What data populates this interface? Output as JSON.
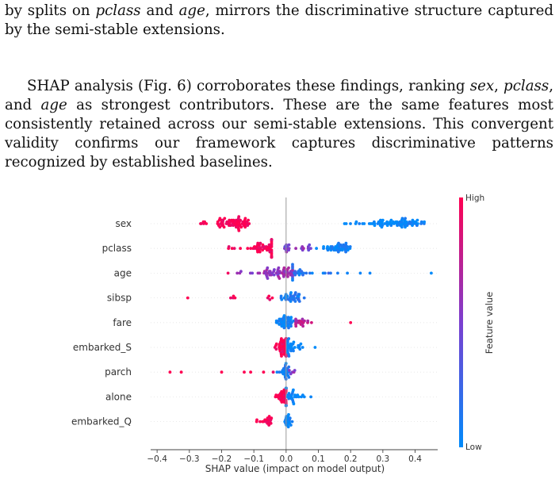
{
  "text": {
    "p1": [
      {
        "t": "by splits on "
      },
      {
        "t": "pclass",
        "i": true
      },
      {
        "t": " and "
      },
      {
        "t": "age",
        "i": true
      },
      {
        "t": ", mirrors the discriminative structure captured by the semi-stable extensions."
      }
    ],
    "p2": [
      {
        "t": "SHAP analysis (Fig. 6) corroborates these findings, ranking "
      },
      {
        "t": "sex",
        "i": true
      },
      {
        "t": ", "
      },
      {
        "t": "pclass",
        "i": true
      },
      {
        "t": ", and "
      },
      {
        "t": "age",
        "i": true
      },
      {
        "t": " as strongest contributors. These are the same features most consistently retained across our semi-stable extensions. This convergent validity confirms our framework captures discriminative patterns recognized by established baselines."
      }
    ]
  },
  "chart_data": {
    "type": "scatter",
    "subtype": "shap-beeswarm",
    "title": "",
    "xlabel": "SHAP value (impact on model output)",
    "xlim": [
      -0.42,
      0.47
    ],
    "xticks": [
      -0.4,
      -0.3,
      -0.2,
      -0.1,
      0.0,
      0.1,
      0.2,
      0.3,
      0.4
    ],
    "xtick_labels": [
      "−0.4",
      "−0.3",
      "−0.2",
      "−0.1",
      "0.0",
      "0.1",
      "0.2",
      "0.3",
      "0.4"
    ],
    "colorbar": {
      "label": "Feature value",
      "high": "High",
      "low": "Low",
      "high_color": "#ff0052",
      "low_color": "#008bfb"
    },
    "zero_line_color": "#999999",
    "grid": false,
    "features": [
      {
        "name": "sex",
        "groups": [
          {
            "min": -0.265,
            "max": -0.105,
            "peak": -0.165,
            "count": 70,
            "c": 1.0
          },
          {
            "min": 0.165,
            "max": 0.43,
            "peak": 0.335,
            "count": 75,
            "c": 0.0
          }
        ],
        "outliers": []
      },
      {
        "name": "pclass",
        "groups": [
          {
            "min": -0.185,
            "max": -0.045,
            "peak": -0.06,
            "count": 55,
            "c": 1.0
          },
          {
            "min": -0.005,
            "max": 0.015,
            "peak": 0.0,
            "count": 10,
            "c": 0.5
          },
          {
            "min": 0.03,
            "max": 0.09,
            "peak": 0.06,
            "count": 10,
            "c": 0.55
          },
          {
            "min": 0.09,
            "max": 0.215,
            "peak": 0.16,
            "count": 40,
            "c": 0.05
          }
        ],
        "outliers": []
      },
      {
        "name": "age",
        "groups": [
          {
            "min": -0.16,
            "max": 0.02,
            "peak": -0.02,
            "count": 60,
            "c": 0.6
          },
          {
            "min": 0.02,
            "max": 0.14,
            "peak": 0.03,
            "count": 25,
            "c": 0.15
          }
        ],
        "outliers": [
          {
            "x": -0.18,
            "c": 0.95
          },
          {
            "x": 0.16,
            "c": 0.1
          },
          {
            "x": 0.19,
            "c": 0.05
          },
          {
            "x": 0.23,
            "c": 0.05
          },
          {
            "x": 0.26,
            "c": 0.05
          },
          {
            "x": 0.45,
            "c": 0.0
          }
        ]
      },
      {
        "name": "sibsp",
        "groups": [
          {
            "min": -0.185,
            "max": -0.155,
            "peak": -0.17,
            "count": 4,
            "c": 1.0
          },
          {
            "min": -0.06,
            "max": -0.035,
            "peak": -0.05,
            "count": 4,
            "c": 1.0
          },
          {
            "min": -0.02,
            "max": 0.06,
            "peak": 0.02,
            "count": 35,
            "c": 0.1
          }
        ],
        "outliers": [
          {
            "x": -0.305,
            "c": 1.0
          }
        ]
      },
      {
        "name": "fare",
        "groups": [
          {
            "min": -0.03,
            "max": 0.03,
            "peak": 0.0,
            "count": 40,
            "c": 0.05
          },
          {
            "min": 0.03,
            "max": 0.085,
            "peak": 0.04,
            "count": 20,
            "c": 0.75
          }
        ],
        "outliers": [
          {
            "x": 0.2,
            "c": 1.0
          }
        ]
      },
      {
        "name": "embarked_S",
        "groups": [
          {
            "min": -0.035,
            "max": 0.005,
            "peak": -0.01,
            "count": 40,
            "c": 1.0
          },
          {
            "min": 0.005,
            "max": 0.06,
            "peak": 0.01,
            "count": 30,
            "c": 0.0
          }
        ],
        "outliers": [
          {
            "x": 0.09,
            "c": 0.0
          }
        ]
      },
      {
        "name": "parch",
        "groups": [
          {
            "min": -0.03,
            "max": 0.01,
            "peak": 0.0,
            "count": 25,
            "c": 0.05
          },
          {
            "min": 0.01,
            "max": 0.035,
            "peak": 0.015,
            "count": 5,
            "c": 0.6
          }
        ],
        "outliers": [
          {
            "x": -0.36,
            "c": 1.0
          },
          {
            "x": -0.325,
            "c": 1.0
          },
          {
            "x": -0.2,
            "c": 1.0
          },
          {
            "x": -0.13,
            "c": 1.0
          },
          {
            "x": -0.11,
            "c": 1.0
          },
          {
            "x": -0.07,
            "c": 1.0
          },
          {
            "x": -0.04,
            "c": 0.9
          }
        ]
      },
      {
        "name": "alone",
        "groups": [
          {
            "min": -0.035,
            "max": 0.0,
            "peak": -0.005,
            "count": 35,
            "c": 1.0
          },
          {
            "min": 0.0,
            "max": 0.085,
            "peak": 0.005,
            "count": 30,
            "c": 0.0
          }
        ],
        "outliers": []
      },
      {
        "name": "embarked_Q",
        "groups": [
          {
            "min": -0.1,
            "max": -0.04,
            "peak": -0.06,
            "count": 20,
            "c": 1.0
          },
          {
            "min": -0.005,
            "max": 0.02,
            "peak": 0.005,
            "count": 20,
            "c": 0.0
          }
        ],
        "outliers": []
      }
    ]
  }
}
